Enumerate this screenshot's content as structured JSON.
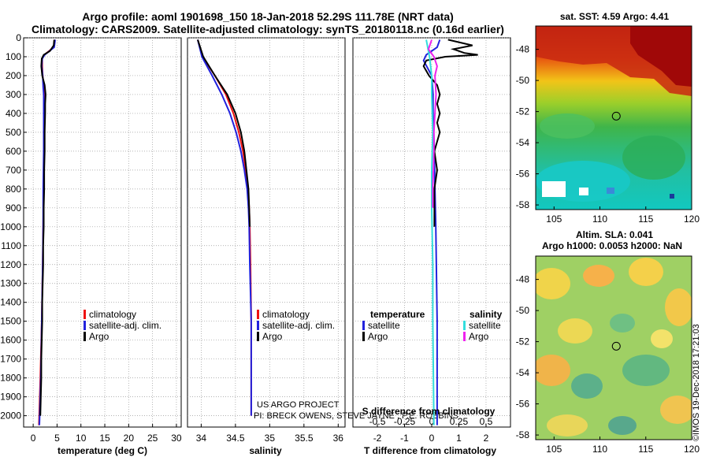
{
  "titles": {
    "line1": "Argo profile: aoml 1901698_150 18-Jan-2018 52.29S 111.78E (NRT data)",
    "line2": "Climatology: CARS2009. Satellite-adjusted climatology: synTS_20180118.nc (0.16d earlier)"
  },
  "map_titles": {
    "sst": "sat. SST: 4.59 Argo: 4.41",
    "sla1": "Altim. SLA: 0.041",
    "sla2": "Argo h1000: 0.0053 h2000: NaN"
  },
  "watermark": "©IMOS 19-Dec-2018 17:21:03",
  "credits": {
    "line1": "US ARGO PROJECT",
    "line2": "PI: BRECK OWENS, STEVE JAYNE , P.E. ROBBINS"
  },
  "colors": {
    "climatology": "#ee1111",
    "satellite": "#2222dd",
    "argo": "#000000",
    "sal_satellite": "#33dddd",
    "sal_argo": "#ee22ee"
  },
  "chart_data": [
    {
      "type": "line",
      "name": "temperature",
      "xlabel": "temperature (deg C)",
      "ylabel": "",
      "xlim": [
        -2,
        31
      ],
      "ylim": [
        2060,
        0
      ],
      "xticks": [
        0,
        5,
        10,
        15,
        20,
        25,
        30
      ],
      "yticks": [
        0,
        100,
        200,
        300,
        400,
        500,
        600,
        700,
        800,
        900,
        1000,
        1100,
        1200,
        1300,
        1400,
        1500,
        1600,
        1700,
        1800,
        1900,
        2000
      ],
      "legend": [
        "climatology",
        "satellite-adj. clim.",
        "Argo"
      ],
      "legend_position": "bottom-right",
      "series": [
        {
          "name": "climatology",
          "color_key": "climatology",
          "depth": [
            10,
            50,
            90,
            110,
            150,
            200,
            260,
            300,
            400,
            600,
            800,
            1000,
            1200,
            1500,
            1800,
            2050
          ],
          "values": [
            4.5,
            4.3,
            2.3,
            1.9,
            1.9,
            2.0,
            2.2,
            2.3,
            2.3,
            2.3,
            2.2,
            2.1,
            2.0,
            1.8,
            1.5,
            1.2
          ]
        },
        {
          "name": "satellite-adj. clim.",
          "color_key": "satellite",
          "depth": [
            10,
            50,
            90,
            110,
            150,
            200,
            260,
            300,
            400,
            600,
            800,
            1000,
            1200,
            1500,
            1800,
            2050
          ],
          "values": [
            4.6,
            4.4,
            2.4,
            1.9,
            1.8,
            2.0,
            2.1,
            2.2,
            2.2,
            2.2,
            2.1,
            2.1,
            2.0,
            1.8,
            1.6,
            1.3
          ]
        },
        {
          "name": "Argo",
          "color_key": "argo",
          "depth": [
            10,
            40,
            70,
            90,
            110,
            150,
            200,
            250,
            300,
            350,
            400,
            500,
            600,
            700,
            800,
            900,
            1000,
            1100,
            1200,
            1300,
            1400,
            1500,
            1600,
            1700,
            1800,
            1900,
            2000
          ],
          "values": [
            4.4,
            4.3,
            3.5,
            2.2,
            1.8,
            1.7,
            1.9,
            2.4,
            2.6,
            2.5,
            2.5,
            2.4,
            2.4,
            2.3,
            2.3,
            2.2,
            2.2,
            2.1,
            2.1,
            2.0,
            1.9,
            1.9,
            1.8,
            1.7,
            1.7,
            1.6,
            1.5
          ]
        }
      ]
    },
    {
      "type": "line",
      "name": "salinity",
      "xlabel": "salinity",
      "ylabel": "",
      "xlim": [
        33.8,
        36.1
      ],
      "ylim": [
        2060,
        0
      ],
      "xticks": [
        34,
        34.5,
        35,
        35.5,
        36
      ],
      "legend": [
        "climatology",
        "satellite-adj. clim.",
        "Argo"
      ],
      "legend_position": "bottom-right",
      "series": [
        {
          "name": "climatology",
          "color_key": "climatology",
          "depth": [
            10,
            100,
            200,
            300,
            400,
            500,
            600,
            700,
            800,
            900,
            1000,
            1200,
            1500,
            2000
          ],
          "values": [
            33.95,
            34.02,
            34.2,
            34.36,
            34.47,
            34.55,
            34.61,
            34.65,
            34.68,
            34.7,
            34.71,
            34.72,
            34.73,
            34.73
          ]
        },
        {
          "name": "satellite-adj. clim.",
          "color_key": "satellite",
          "depth": [
            10,
            100,
            200,
            300,
            400,
            500,
            600,
            700,
            800,
            900,
            1000,
            1200,
            1500,
            2000
          ],
          "values": [
            33.95,
            34.01,
            34.16,
            34.3,
            34.42,
            34.51,
            34.58,
            34.63,
            34.67,
            34.69,
            34.7,
            34.71,
            34.73,
            34.73
          ]
        },
        {
          "name": "Argo",
          "color_key": "argo",
          "depth": [
            10,
            100,
            200,
            300,
            400,
            500,
            600,
            700,
            800,
            900,
            1000
          ],
          "values": [
            33.95,
            34.03,
            34.2,
            34.38,
            34.5,
            34.58,
            34.63,
            34.66,
            34.69,
            34.7,
            34.71
          ]
        }
      ]
    },
    {
      "type": "line",
      "name": "difference",
      "xlabel": "T difference from climatology",
      "xlabel_top": "S difference from climatology",
      "xlim": [
        -2.9,
        2.9
      ],
      "ylim": [
        2060,
        0
      ],
      "xticks": [
        -2,
        -1,
        0,
        1,
        2
      ],
      "xticks_s": [
        -0.5,
        -0.25,
        0,
        0.25,
        0.5
      ],
      "legend_temperature": {
        "title": "temperature",
        "entries": [
          "satellite",
          "Argo"
        ]
      },
      "legend_salinity": {
        "title": "salinity",
        "entries": [
          "satellite",
          "Argo"
        ]
      },
      "series": [
        {
          "name": "temperature satellite",
          "color_key": "satellite",
          "depth": [
            10,
            50,
            90,
            120,
            200,
            300,
            400,
            600,
            800,
            1000,
            1500,
            2050
          ],
          "values": [
            0.3,
            0.2,
            -0.2,
            -0.3,
            0.0,
            0.05,
            0.05,
            0.1,
            0.12,
            0.15,
            0.2,
            0.2
          ]
        },
        {
          "name": "temperature Argo",
          "color_key": "argo",
          "depth": [
            10,
            40,
            60,
            80,
            90,
            100,
            120,
            150,
            200,
            250,
            300,
            350,
            400,
            450,
            500,
            600,
            700,
            800,
            900,
            1000
          ],
          "values": [
            0.6,
            1.5,
            0.8,
            1.2,
            1.7,
            0.5,
            -0.2,
            -0.3,
            -0.1,
            0.2,
            0.3,
            0.2,
            0.3,
            0.2,
            0.3,
            0.1,
            0.2,
            0.1,
            0.1,
            0.1
          ]
        },
        {
          "name": "salinity satellite",
          "color_key": "sal_satellite",
          "depth": [
            10,
            100,
            200,
            300,
            500,
            700,
            900,
            1200,
            1500,
            2050
          ],
          "values": [
            -0.05,
            -0.02,
            0.0,
            0.0,
            0.01,
            0.0,
            0.0,
            0.01,
            0.01,
            0.02
          ]
        },
        {
          "name": "salinity Argo",
          "color_key": "sal_argo",
          "depth": [
            10,
            60,
            100,
            150,
            200,
            300,
            400,
            500,
            600,
            800,
            900
          ],
          "values": [
            0.0,
            -0.03,
            0.02,
            0.05,
            0.03,
            0.04,
            0.03,
            0.02,
            0.02,
            0.01,
            0.01
          ]
        }
      ]
    },
    {
      "type": "heatmap",
      "name": "sst-map",
      "xticks": [
        105,
        110,
        115,
        120
      ],
      "yticks": [
        -48,
        -50,
        -52,
        -54,
        -56,
        -58
      ],
      "xlim": [
        103,
        120
      ],
      "ylim": [
        -58.3,
        -46.5
      ],
      "marker": {
        "lon": 111.78,
        "lat": -52.29
      }
    },
    {
      "type": "heatmap",
      "name": "sla-map",
      "xticks": [
        105,
        110,
        115,
        120
      ],
      "yticks": [
        -48,
        -50,
        -52,
        -54,
        -56,
        -58
      ],
      "xlim": [
        103,
        120
      ],
      "ylim": [
        -58.3,
        -46.5
      ],
      "marker": {
        "lon": 111.78,
        "lat": -52.29
      }
    }
  ]
}
